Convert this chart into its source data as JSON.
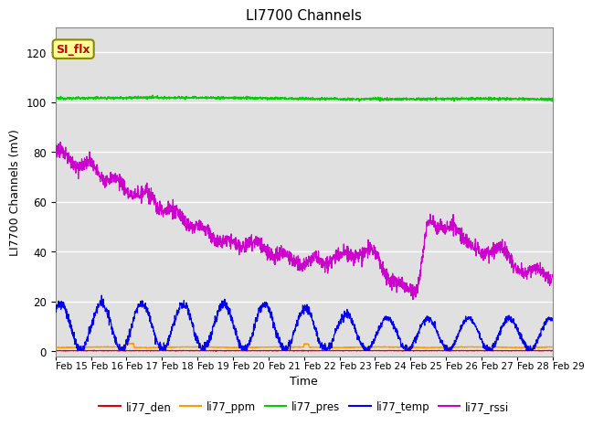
{
  "title": "LI7700 Channels",
  "ylabel": "LI7700 Channels (mV)",
  "xlabel": "Time",
  "xlim": [
    0,
    14
  ],
  "ylim": [
    -2,
    130
  ],
  "yticks": [
    0,
    20,
    40,
    60,
    80,
    100,
    120
  ],
  "xtick_labels": [
    "Feb 15",
    "Feb 16",
    "Feb 17",
    "Feb 18",
    "Feb 19",
    "Feb 20",
    "Feb 21",
    "Feb 22",
    "Feb 23",
    "Feb 24",
    "Feb 25",
    "Feb 26",
    "Feb 27",
    "Feb 28",
    "Feb 29"
  ],
  "bg_color": "#e0e0e0",
  "legend_items": [
    {
      "label": "li77_den",
      "color": "#dd0000"
    },
    {
      "label": "li77_ppm",
      "color": "#ff9900"
    },
    {
      "label": "li77_pres",
      "color": "#00cc00"
    },
    {
      "label": "li77_temp",
      "color": "#0000ee"
    },
    {
      "label": "li77_rssi",
      "color": "#cc00cc"
    }
  ],
  "annotation": {
    "text": "SI_flx",
    "bg": "#ffff99",
    "border": "#888800",
    "text_color": "#cc0000"
  }
}
